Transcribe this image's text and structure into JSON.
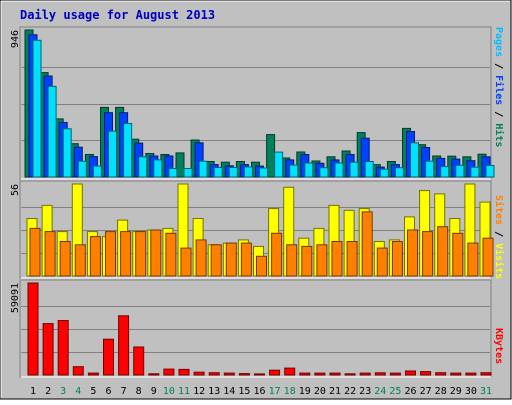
{
  "chart_data": {
    "title": "Daily usage for August 2013",
    "type": "bar",
    "days": [
      "1",
      "2",
      "3",
      "4",
      "5",
      "6",
      "7",
      "8",
      "9",
      "10",
      "11",
      "12",
      "13",
      "14",
      "15",
      "16",
      "17",
      "18",
      "19",
      "20",
      "21",
      "22",
      "23",
      "24",
      "25",
      "26",
      "27",
      "28",
      "29",
      "30",
      "31"
    ],
    "weekend_days": [
      "3",
      "4",
      "10",
      "11",
      "17",
      "18",
      "24",
      "25",
      "31"
    ],
    "panels": [
      {
        "id": "hits",
        "ymax": 946,
        "ymax_label": "946",
        "right_label": [
          {
            "text": "Pages",
            "color": "#00c0ff"
          },
          {
            "text": " / ",
            "color": "#000000"
          },
          {
            "text": "Files",
            "color": "#0040ff"
          },
          {
            "text": " / ",
            "color": "#000000"
          },
          {
            "text": "Hits",
            "color": "#00805c"
          }
        ],
        "series": [
          {
            "name": "Hits",
            "color": "#00805c",
            "values": [
              946,
              672,
              374,
              214,
              145,
              448,
              448,
              243,
              151,
              145,
              155,
              238,
              100,
              95,
              100,
              95,
              273,
              122,
              161,
              103,
              130,
              167,
              286,
              80,
              100,
              313,
              208,
              135,
              134,
              130,
              147
            ]
          },
          {
            "name": "Files",
            "color": "#0040ff",
            "values": [
              915,
              650,
              351,
              192,
              131,
              414,
              414,
              218,
              135,
              135,
              0,
              220,
              80,
              72,
              80,
              70,
              0,
              110,
              145,
              88,
              110,
              145,
              250,
              64,
              80,
              293,
              190,
              120,
              115,
              105,
              130
            ]
          },
          {
            "name": "Pages",
            "color": "#00e0ff",
            "values": [
              880,
              583,
              310,
              102,
              70,
              295,
              344,
              130,
              110,
              55,
              55,
              102,
              61,
              61,
              65,
              58,
              160,
              77,
              90,
              60,
              90,
              95,
              100,
              50,
              60,
              220,
              102,
              67,
              75,
              63,
              74
            ]
          }
        ]
      },
      {
        "id": "visits",
        "ymax": 56,
        "ymax_label": "56",
        "right_label": [
          {
            "text": "Sites",
            "color": "#ff8000"
          },
          {
            "text": " / ",
            "color": "#000000"
          },
          {
            "text": "Visits",
            "color": "#ffff00"
          }
        ],
        "series": [
          {
            "name": "Visits",
            "color": "#ffff00",
            "values": [
              35,
              43,
              27,
              56,
              27,
              24,
              34,
              27,
              28,
              29,
              56,
              35,
              19,
              20,
              22,
              18,
              41,
              54,
              23,
              29,
              43,
              40,
              41,
              21,
              22,
              36,
              52,
              50,
              35,
              56,
              45
            ]
          },
          {
            "name": "Sites",
            "color": "#ff8000",
            "values": [
              29,
              27,
              21,
              19,
              24,
              27,
              27,
              27,
              28,
              26,
              17,
              22,
              19,
              20,
              20,
              12,
              26,
              19,
              18,
              19,
              21,
              21,
              39,
              17,
              21,
              28,
              27,
              30,
              26,
              20,
              23
            ]
          }
        ]
      },
      {
        "id": "kbytes",
        "ymax": 59091,
        "ymax_label": "59091",
        "right_label": [
          {
            "text": "KBytes",
            "color": "#ff0000"
          }
        ],
        "series": [
          {
            "name": "KBytes",
            "color": "#ff0000",
            "values": [
              59091,
              33000,
              35000,
              5300,
              1200,
              23000,
              38000,
              18000,
              800,
              3800,
              3600,
              1800,
              1500,
              1200,
              900,
              700,
              3100,
              4400,
              1200,
              1200,
              1200,
              800,
              1200,
              1400,
              1200,
              2600,
              2200,
              1500,
              1200,
              1200,
              1500
            ]
          }
        ]
      }
    ]
  },
  "colors": {
    "background": "#c0c0c0",
    "title": "#0000c0",
    "gridline": "#808080",
    "weekday_label": "#000000",
    "weekend_label": "#00805c"
  }
}
